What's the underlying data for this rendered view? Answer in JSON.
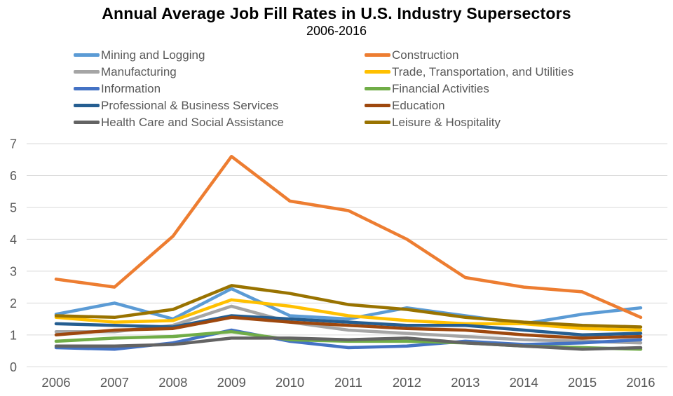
{
  "title": "Annual Average Job Fill Rates in U.S. Industry Supersectors",
  "subtitle": "2006-2016",
  "axis_color": "#595959",
  "gridline_color": "#D9D9D9",
  "chart_data": {
    "type": "line",
    "title": "Annual Average Job Fill Rates in U.S. Industry Supersectors",
    "subtitle": "2006-2016",
    "xlabel": "",
    "ylabel": "",
    "x": [
      2006,
      2007,
      2008,
      2009,
      2010,
      2011,
      2012,
      2013,
      2014,
      2015,
      2016
    ],
    "ylim": [
      0,
      7
    ],
    "yticks": [
      0,
      1,
      2,
      3,
      4,
      5,
      6,
      7
    ],
    "grid": true,
    "legend_position": "top",
    "series": [
      {
        "name": "Mining and Logging",
        "color": "#5B9BD5",
        "values": [
          1.65,
          2.0,
          1.5,
          2.45,
          1.6,
          1.5,
          1.85,
          1.6,
          1.35,
          1.65,
          1.85
        ]
      },
      {
        "name": "Construction",
        "color": "#ED7D31",
        "values": [
          2.75,
          2.5,
          4.1,
          6.6,
          5.2,
          4.9,
          4.0,
          2.8,
          2.5,
          2.35,
          1.55
        ]
      },
      {
        "name": "Manufacturing",
        "color": "#A5A5A5",
        "values": [
          1.1,
          1.1,
          1.3,
          1.9,
          1.4,
          1.15,
          1.05,
          0.95,
          0.85,
          0.8,
          0.75
        ]
      },
      {
        "name": "Trade, Transportation, and Utilities",
        "color": "#FFC000",
        "values": [
          1.55,
          1.4,
          1.45,
          2.1,
          1.9,
          1.6,
          1.45,
          1.35,
          1.35,
          1.2,
          1.15
        ]
      },
      {
        "name": "Information",
        "color": "#4472C4",
        "values": [
          0.6,
          0.55,
          0.75,
          1.15,
          0.8,
          0.6,
          0.65,
          0.8,
          0.7,
          0.75,
          0.85
        ]
      },
      {
        "name": "Financial Activities",
        "color": "#70AD47",
        "values": [
          0.8,
          0.9,
          0.95,
          1.1,
          0.85,
          0.8,
          0.8,
          0.75,
          0.65,
          0.6,
          0.55
        ]
      },
      {
        "name": "Professional & Business Services",
        "color": "#255E91",
        "values": [
          1.35,
          1.3,
          1.25,
          1.6,
          1.5,
          1.4,
          1.3,
          1.3,
          1.15,
          1.0,
          1.05
        ]
      },
      {
        "name": "Education",
        "color": "#9E480E",
        "values": [
          1.0,
          1.15,
          1.2,
          1.55,
          1.4,
          1.3,
          1.2,
          1.15,
          1.0,
          0.9,
          0.95
        ]
      },
      {
        "name": "Health Care and Social Assistance",
        "color": "#636363",
        "values": [
          0.65,
          0.65,
          0.7,
          0.9,
          0.9,
          0.85,
          0.9,
          0.75,
          0.65,
          0.55,
          0.6
        ]
      },
      {
        "name": "Leisure & Hospitality",
        "color": "#997300",
        "values": [
          1.6,
          1.55,
          1.8,
          2.55,
          2.3,
          1.95,
          1.8,
          1.55,
          1.4,
          1.3,
          1.25
        ]
      }
    ]
  }
}
